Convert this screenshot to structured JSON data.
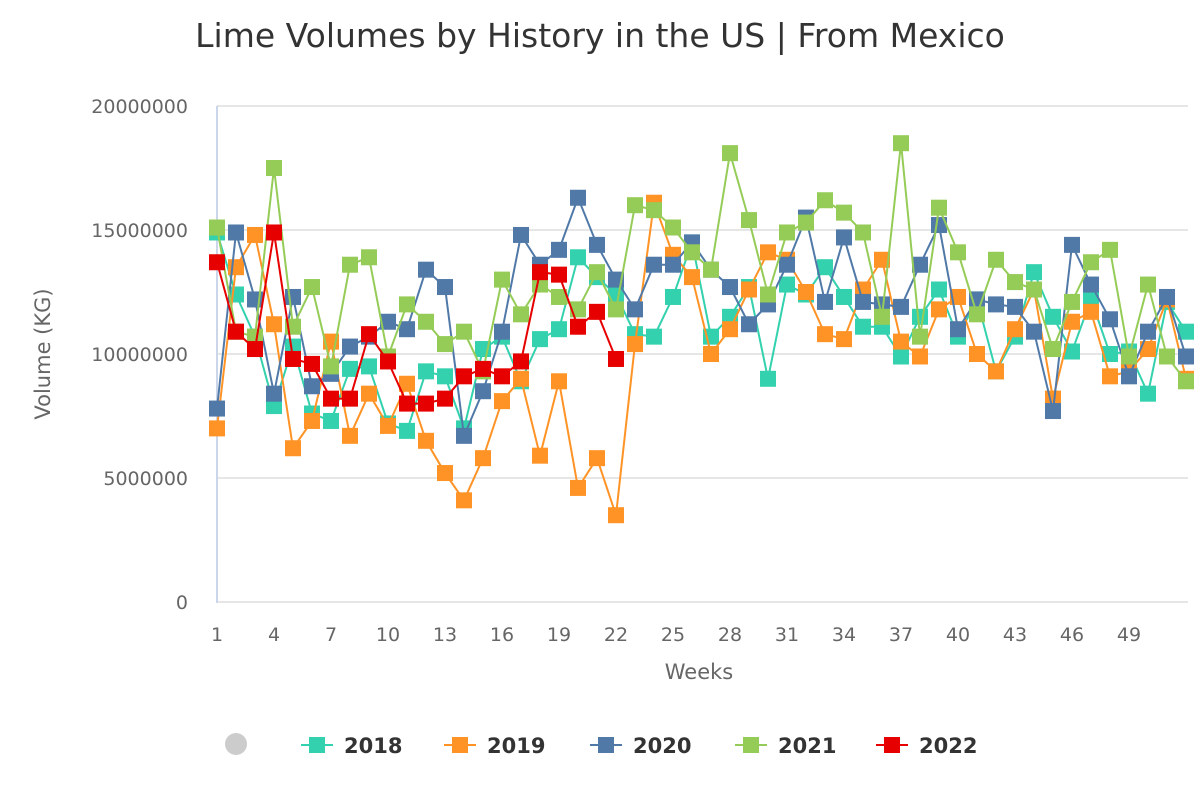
{
  "chart_data": {
    "type": "line",
    "title": "Lime Volumes by History in the US | From Mexico",
    "xlabel": "Weeks",
    "ylabel": "Volume (KG)",
    "ylim": [
      0,
      20000000
    ],
    "yticks": [
      "0",
      "5000000",
      "10000000",
      "15000000",
      "20000000"
    ],
    "xticks": [
      "1",
      "4",
      "7",
      "10",
      "13",
      "16",
      "19",
      "22",
      "25",
      "28",
      "31",
      "34",
      "37",
      "40",
      "43",
      "46",
      "49"
    ],
    "xlim": [
      1,
      52
    ],
    "grid": "horizontal",
    "legend_placement": "bottom",
    "marker": "square",
    "series": [
      {
        "name": "2018",
        "color": "#33d1ad",
        "values": [
          14900000,
          12400000,
          10700000,
          7900000,
          10300000,
          7600000,
          7300000,
          9400000,
          9500000,
          7200000,
          6900000,
          9300000,
          9100000,
          7000000,
          10200000,
          10700000,
          8900000,
          10600000,
          11000000,
          13900000,
          13100000,
          12400000,
          10800000,
          10700000,
          12300000,
          14500000,
          10700000,
          11500000,
          12700000,
          9000000,
          12800000,
          12400000,
          13500000,
          12300000,
          11100000,
          11100000,
          9900000,
          11500000,
          12600000,
          10700000,
          12200000,
          9300000,
          10700000,
          13300000,
          11500000,
          10100000,
          12200000,
          10000000,
          10100000,
          8400000,
          12100000,
          10900000
        ]
      },
      {
        "name": "2019",
        "color": "#ff9326",
        "values": [
          7000000,
          13500000,
          14800000,
          11200000,
          6200000,
          7300000,
          10500000,
          6700000,
          8400000,
          7100000,
          8800000,
          6500000,
          5200000,
          4100000,
          5800000,
          8100000,
          9000000,
          5900000,
          8900000,
          4600000,
          5800000,
          3500000,
          10400000,
          16100000,
          14000000,
          13100000,
          10000000,
          11000000,
          12600000,
          14100000,
          13800000,
          12500000,
          10800000,
          10600000,
          12600000,
          13800000,
          10500000,
          9900000,
          11800000,
          12300000,
          10000000,
          9300000,
          11000000,
          12600000,
          8200000,
          11300000,
          11700000,
          9100000,
          9300000,
          10200000,
          12200000,
          9000000
        ]
      },
      {
        "name": "2020",
        "color": "#5079a8",
        "values": [
          7800000,
          14900000,
          12200000,
          8400000,
          12300000,
          8700000,
          9200000,
          10300000,
          10700000,
          11300000,
          11000000,
          13400000,
          12700000,
          6700000,
          8500000,
          10900000,
          14800000,
          13600000,
          14200000,
          16300000,
          14400000,
          13000000,
          11800000,
          13600000,
          13600000,
          14500000,
          13400000,
          12700000,
          11200000,
          12000000,
          13600000,
          15500000,
          12100000,
          14700000,
          12100000,
          12000000,
          11900000,
          13600000,
          15200000,
          11000000,
          12200000,
          12000000,
          11900000,
          10900000,
          7700000,
          14400000,
          12800000,
          11400000,
          9100000,
          10900000,
          12300000,
          9900000
        ]
      },
      {
        "name": "2021",
        "color": "#95cc57",
        "values": [
          15100000,
          10900000,
          10700000,
          17500000,
          11100000,
          12700000,
          9500000,
          13600000,
          13900000,
          9900000,
          12000000,
          11300000,
          10400000,
          10900000,
          9300000,
          13000000,
          11600000,
          12800000,
          12300000,
          11800000,
          13300000,
          11800000,
          16000000,
          15800000,
          15100000,
          14100000,
          13400000,
          18100000,
          15400000,
          12400000,
          14900000,
          15300000,
          16200000,
          15700000,
          14900000,
          11500000,
          18500000,
          10700000,
          15900000,
          14100000,
          11600000,
          13800000,
          12900000,
          12600000,
          10200000,
          12100000,
          13700000,
          14200000,
          9900000,
          12800000,
          9900000,
          8900000
        ]
      },
      {
        "name": "2022",
        "color": "#e60000",
        "values": [
          13700000,
          10900000,
          10200000,
          14900000,
          9800000,
          9600000,
          8200000,
          8200000,
          10800000,
          9700000,
          8000000,
          8000000,
          8200000,
          9100000,
          9400000,
          9100000,
          9700000,
          13300000,
          13200000,
          11100000,
          11700000,
          9800000
        ]
      }
    ]
  }
}
